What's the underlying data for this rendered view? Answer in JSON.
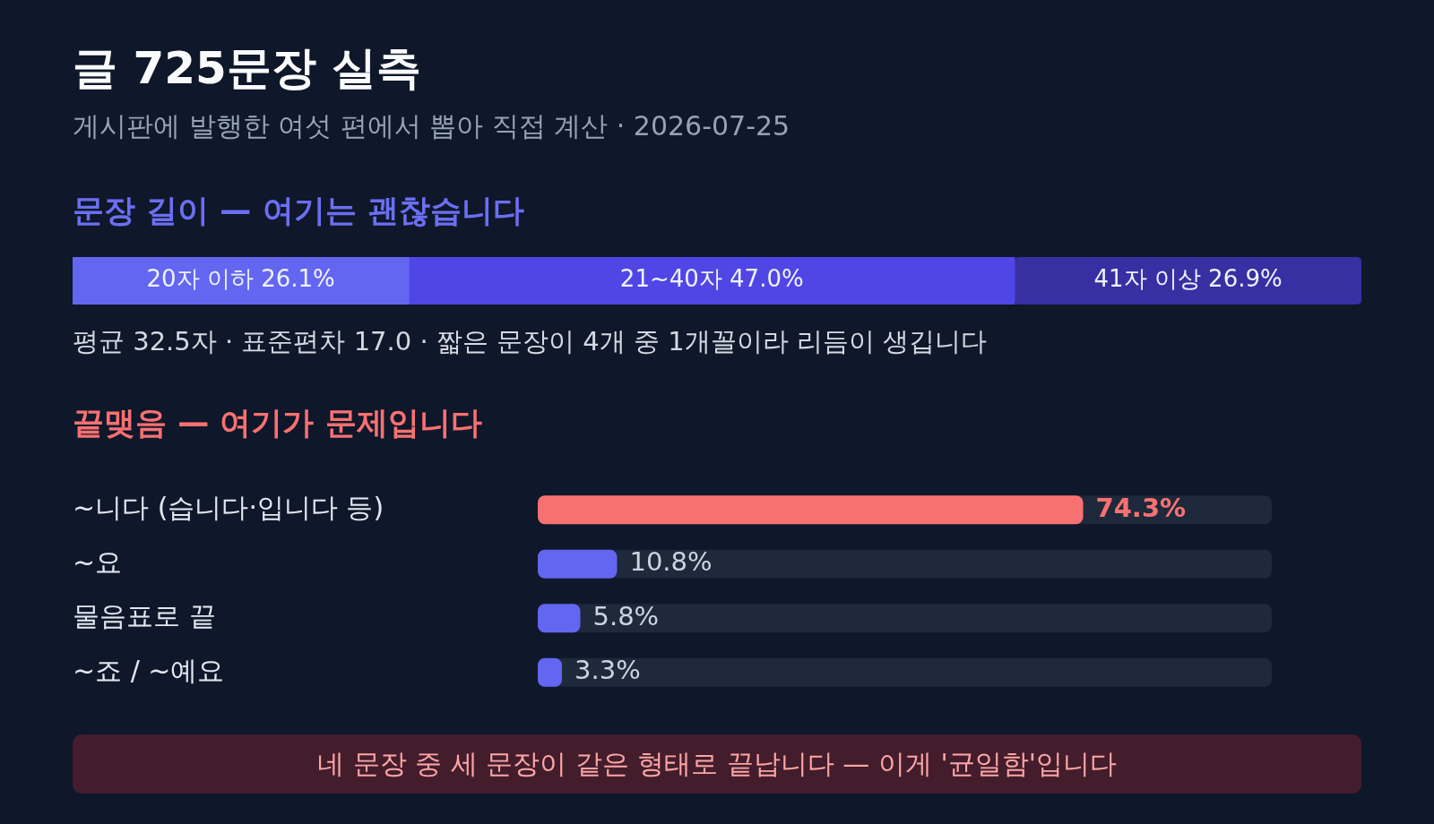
{
  "chart_data": [
    {
      "type": "other",
      "title": "글 725문장 실측",
      "subtitle": "게시판에 발행한 여섯 편에서 뽑아 직접 계산 · 2026-07-25"
    },
    {
      "type": "bar",
      "title": "문장 길이 — 여기는 괜찮습니다",
      "orientation": "horizontal",
      "stacked": true,
      "categories": [
        null
      ],
      "series": [
        {
          "name": "20자 이하",
          "color": "#6366f1",
          "values": [
            26.1
          ],
          "value_labels": [
            "26.1%"
          ]
        },
        {
          "name": "21~40자",
          "color": "#4f46e5",
          "values": [
            47.0
          ],
          "value_labels": [
            "47.0%"
          ]
        },
        {
          "name": "41자 이상",
          "color": "#3730a3",
          "values": [
            26.9
          ],
          "value_labels": [
            "26.9%"
          ]
        }
      ],
      "xlim": [
        0,
        100
      ],
      "tick_labels": false,
      "annotations": [
        "평균 32.5자 · 표준편차 17.0 · 짧은 문장이 4개 중 1개꼴이라 리듬이 생깁니다"
      ]
    },
    {
      "type": "bar",
      "title": "끝맺음 — 여기가 문제입니다",
      "orientation": "horizontal",
      "categories": [
        "~니다 (습니다·입니다 등)",
        "~요",
        "물음표로 끝",
        "~죠 / ~예요"
      ],
      "values": [
        74.3,
        10.8,
        5.8,
        3.3
      ],
      "colors": [
        "#f87171",
        "#6366f1",
        "#6366f1",
        "#6366f1"
      ],
      "value_labels": [
        "74.3%",
        "10.8%",
        "5.8%",
        "3.3%"
      ],
      "xlim": [
        0,
        100
      ],
      "tick_labels": "y",
      "annotations": [
        "네 문장 중 세 문장이 같은 형태로 끝납니다 — 이게 '균일함'입니다"
      ]
    }
  ]
}
